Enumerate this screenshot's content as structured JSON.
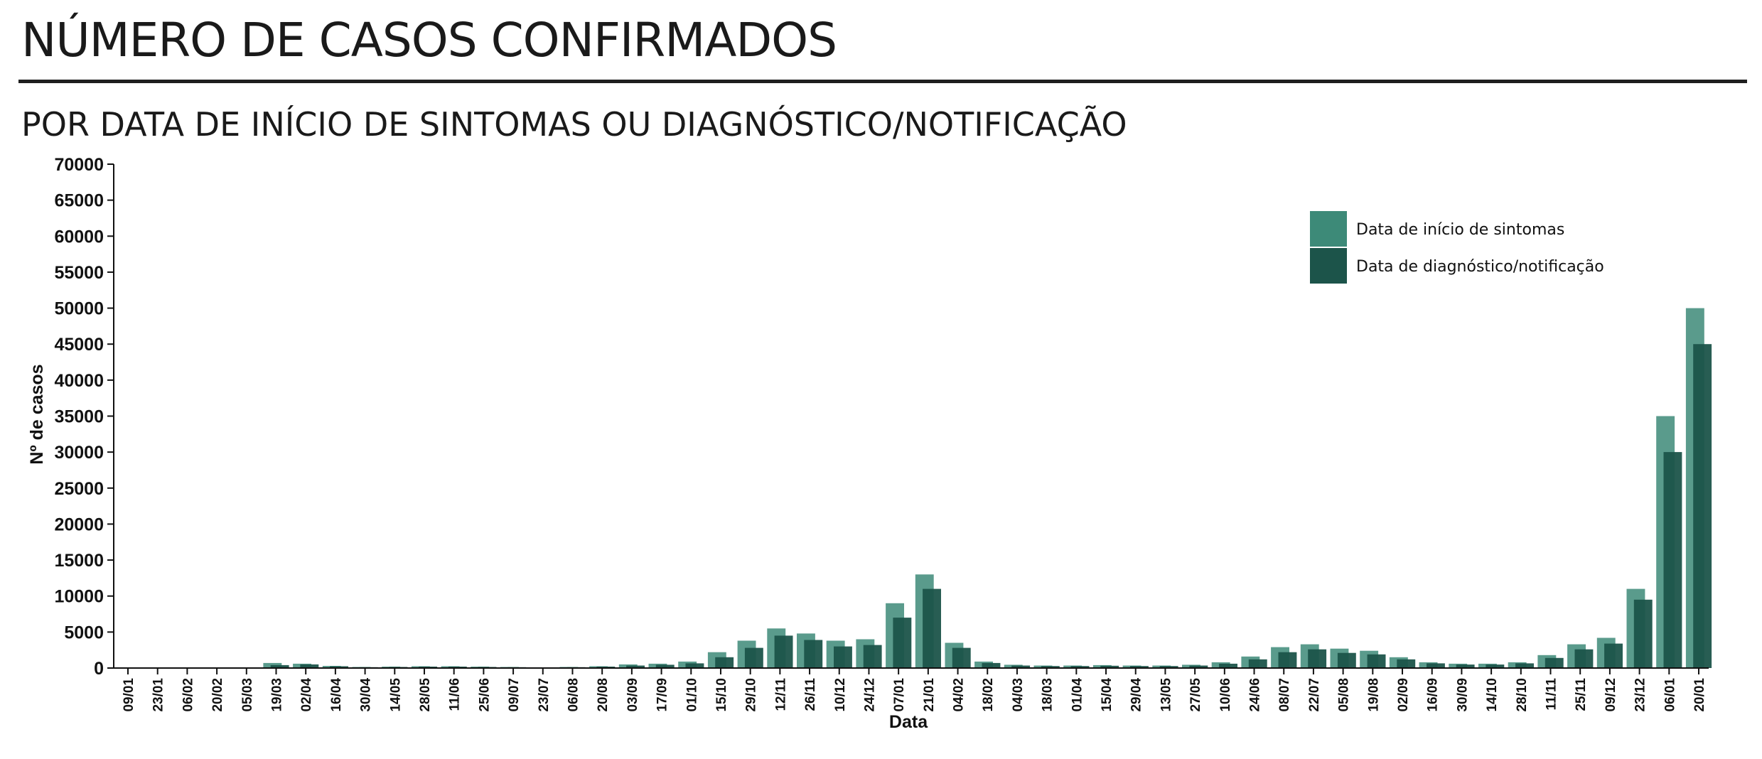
{
  "header": {
    "title": "NÚMERO DE CASOS CONFIRMADOS",
    "subtitle": "POR DATA DE INÍCIO DE SINTOMAS OU DIAGNÓSTICO/NOTIFICAÇÃO"
  },
  "chart_data": {
    "type": "bar",
    "xlabel": "Data",
    "ylabel": "Nº de casos",
    "ylim": [
      0,
      70000
    ],
    "yticks": [
      0,
      5000,
      10000,
      15000,
      20000,
      25000,
      30000,
      35000,
      40000,
      45000,
      50000,
      55000,
      60000,
      65000,
      70000
    ],
    "categories": [
      "09/01",
      "23/01",
      "06/02",
      "20/02",
      "05/03",
      "19/03",
      "02/04",
      "16/04",
      "30/04",
      "14/05",
      "28/05",
      "11/06",
      "25/06",
      "09/07",
      "23/07",
      "06/08",
      "20/08",
      "03/09",
      "17/09",
      "01/10",
      "15/10",
      "29/10",
      "12/11",
      "26/11",
      "10/12",
      "24/12",
      "07/01",
      "21/01",
      "04/02",
      "18/02",
      "04/03",
      "18/03",
      "01/04",
      "15/04",
      "29/04",
      "13/05",
      "27/05",
      "10/06",
      "24/06",
      "08/07",
      "22/07",
      "05/08",
      "19/08",
      "02/09",
      "16/09",
      "30/09",
      "14/10",
      "28/10",
      "11/11",
      "25/11",
      "09/12",
      "23/12",
      "06/01",
      "20/01"
    ],
    "legend_position": "top-right",
    "grid": false,
    "series": [
      {
        "name": "Data de início de sintomas",
        "color": "#3d8a78",
        "values": [
          0,
          0,
          0,
          0,
          0,
          700,
          600,
          300,
          150,
          200,
          250,
          250,
          200,
          150,
          100,
          150,
          250,
          500,
          600,
          900,
          2200,
          3800,
          5500,
          4800,
          3800,
          4000,
          9000,
          13000,
          3500,
          900,
          450,
          350,
          350,
          400,
          350,
          350,
          450,
          800,
          1600,
          2900,
          3300,
          2700,
          2400,
          1500,
          800,
          600,
          600,
          800,
          1800,
          3300,
          4200,
          11000,
          35000,
          50000
        ]
      },
      {
        "name": "Data de diagnóstico/notificação",
        "color": "#1c544a",
        "values": [
          0,
          0,
          0,
          0,
          0,
          400,
          500,
          250,
          120,
          150,
          200,
          200,
          150,
          120,
          80,
          120,
          200,
          350,
          450,
          650,
          1500,
          2800,
          4500,
          3900,
          3000,
          3200,
          7000,
          11000,
          2800,
          700,
          350,
          280,
          280,
          320,
          280,
          280,
          350,
          600,
          1200,
          2200,
          2600,
          2100,
          1900,
          1200,
          650,
          480,
          480,
          650,
          1400,
          2600,
          3400,
          9500,
          30000,
          45000
        ]
      }
    ]
  }
}
